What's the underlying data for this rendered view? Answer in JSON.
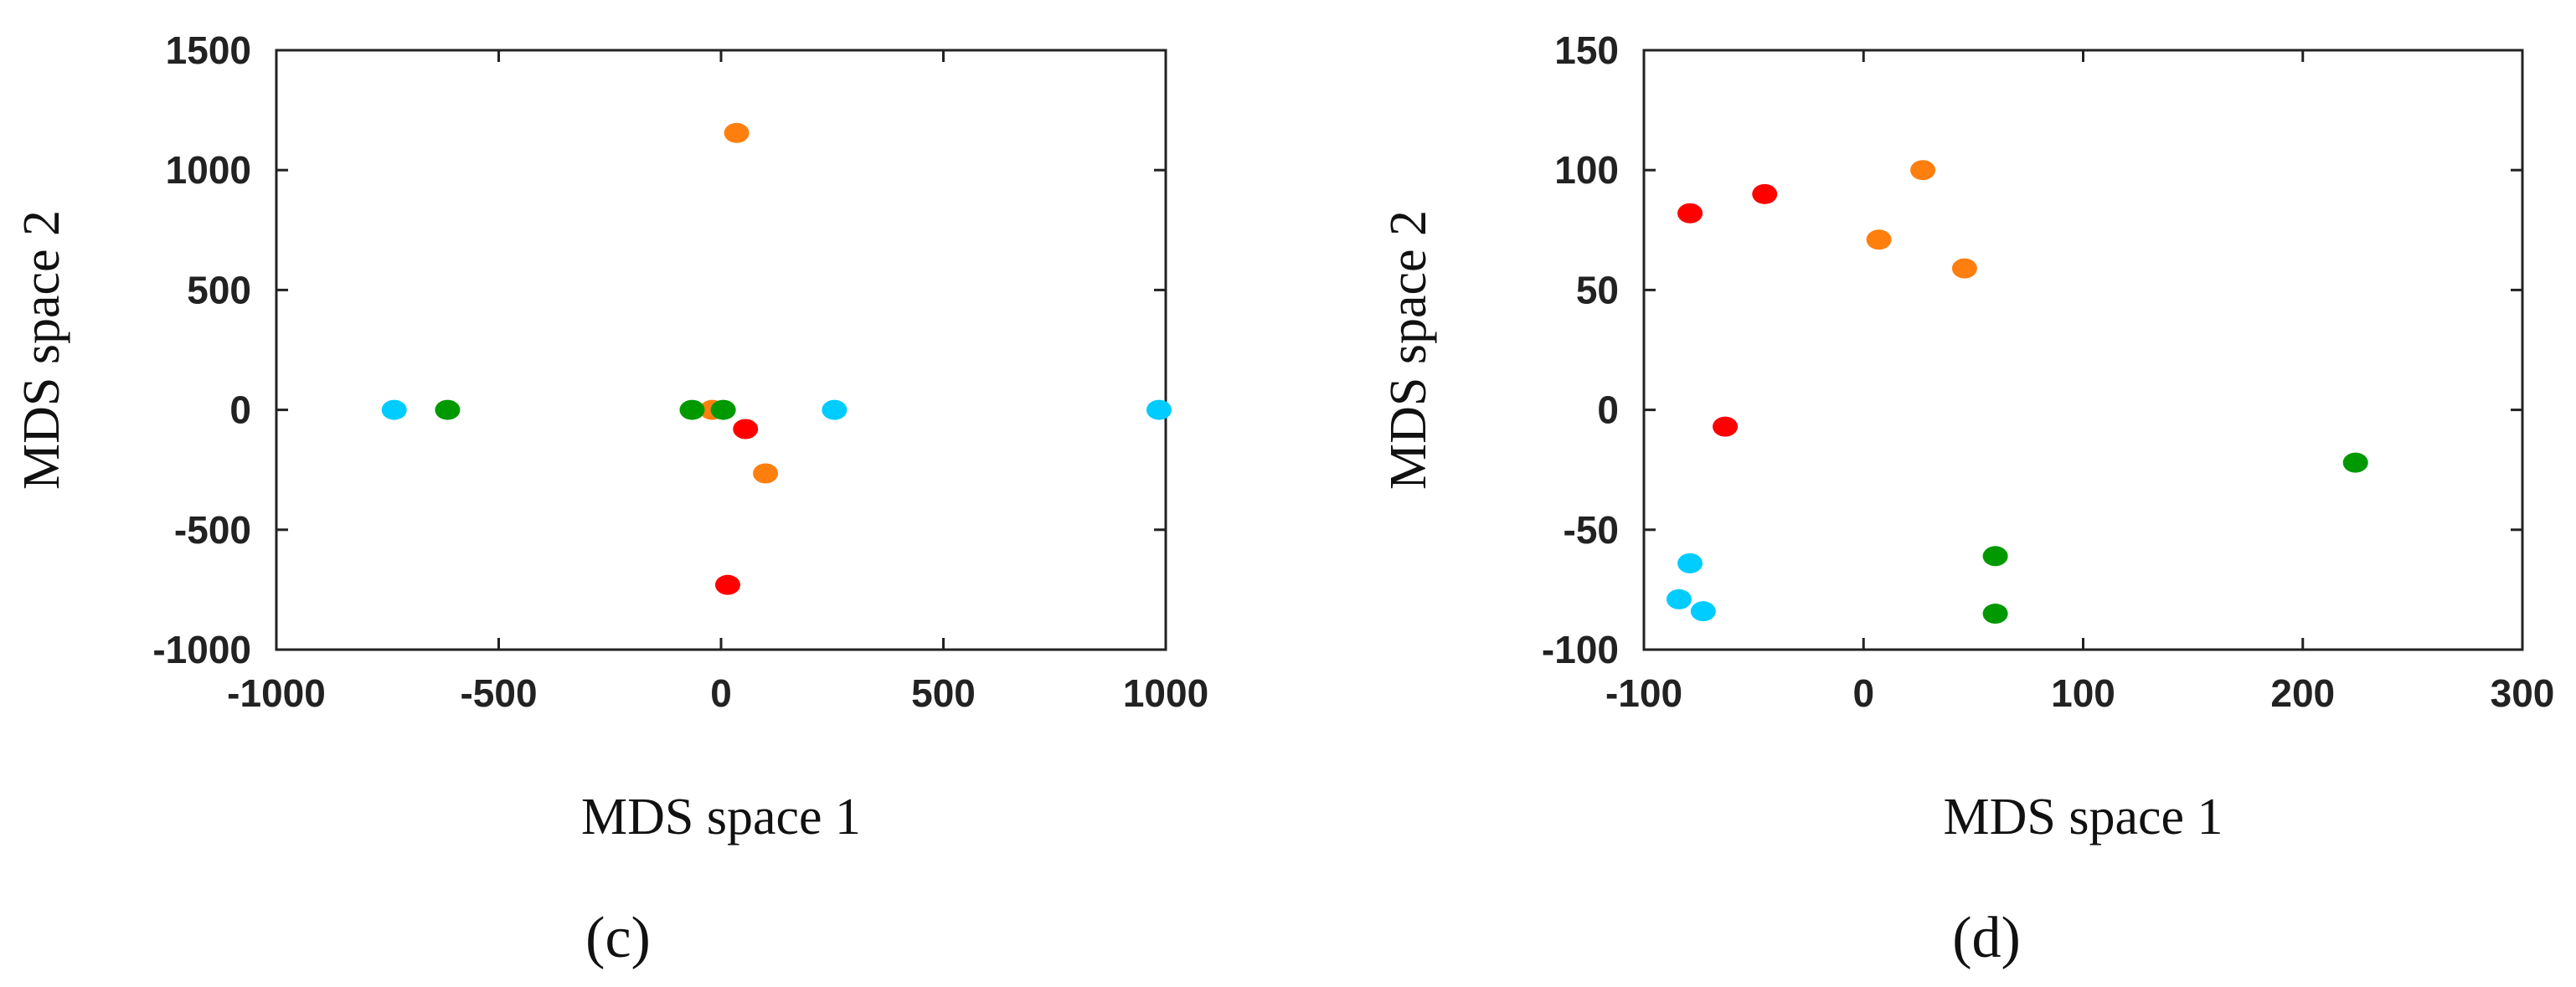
{
  "colors": {
    "orange": "#ff7f0e",
    "red": "#ff0000",
    "green": "#009900",
    "cyan": "#00ccff",
    "axis": "#222222"
  },
  "chart_data": [
    {
      "type": "scatter",
      "panel_label": "(c)",
      "xlabel": "MDS space 1",
      "ylabel": "MDS space 2",
      "xlim": [
        -1000,
        1000
      ],
      "ylim": [
        -1000,
        1500
      ],
      "xticks": [
        -1000,
        -500,
        0,
        500,
        1000
      ],
      "yticks": [
        -1000,
        -500,
        0,
        500,
        1000,
        1500
      ],
      "grid": false,
      "series": [
        {
          "color": "orange",
          "points": [
            [
              35,
              1155
            ],
            [
              -20,
              0
            ],
            [
              100,
              -265
            ]
          ]
        },
        {
          "color": "red",
          "points": [
            [
              55,
              -80
            ],
            [
              15,
              -730
            ]
          ]
        },
        {
          "color": "green",
          "points": [
            [
              -615,
              0
            ],
            [
              -65,
              0
            ],
            [
              5,
              0
            ]
          ]
        },
        {
          "color": "cyan",
          "points": [
            [
              -735,
              0
            ],
            [
              255,
              0
            ],
            [
              985,
              0
            ]
          ]
        }
      ]
    },
    {
      "type": "scatter",
      "panel_label": "(d)",
      "xlabel": "MDS space 1",
      "ylabel": "MDS space 2",
      "xlim": [
        -100,
        300
      ],
      "ylim": [
        -100,
        150
      ],
      "xticks": [
        -100,
        0,
        100,
        200,
        300
      ],
      "yticks": [
        -100,
        -50,
        0,
        50,
        100,
        150
      ],
      "grid": false,
      "series": [
        {
          "color": "orange",
          "points": [
            [
              27,
              100
            ],
            [
              7,
              71
            ],
            [
              46,
              59
            ]
          ]
        },
        {
          "color": "red",
          "points": [
            [
              -79,
              82
            ],
            [
              -45,
              90
            ],
            [
              -63,
              -7
            ]
          ]
        },
        {
          "color": "green",
          "points": [
            [
              224,
              -22
            ],
            [
              60,
              -61
            ],
            [
              60,
              -85
            ]
          ]
        },
        {
          "color": "cyan",
          "points": [
            [
              -79,
              -64
            ],
            [
              -84,
              -79
            ],
            [
              -73,
              -84
            ]
          ]
        }
      ]
    }
  ]
}
